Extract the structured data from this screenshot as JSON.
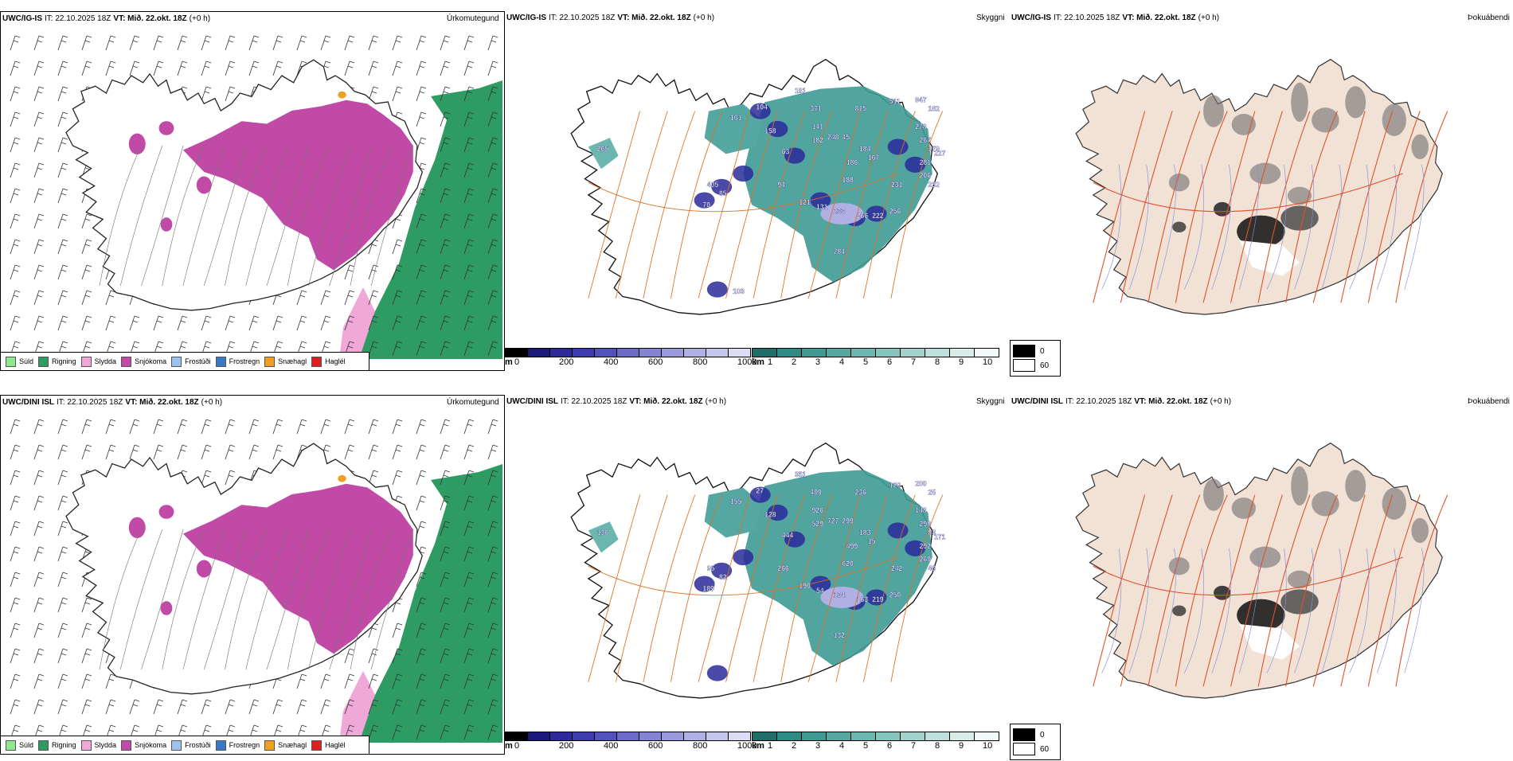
{
  "rows": [
    {
      "model": "UWC/IG-IS",
      "precip": {
        "it_label": "IT: 22.10.2025 18Z",
        "vt_label": "VT: Mið. 22.okt. 18Z",
        "lead": "(+0 h)",
        "right_label": "Úrkomutegund"
      },
      "cloud": {
        "it_label": "IT: 22.10.2025 18Z",
        "vt_label": "VT: Mið. 22.okt. 18Z",
        "lead": "(+0 h)",
        "right_label": "Skyggni",
        "height_labels": [
          "265",
          "161",
          "104",
          "181",
          "158",
          "63",
          "371",
          "141",
          "182",
          "248",
          "45",
          "815",
          "511",
          "947",
          "182",
          "278",
          "184",
          "167",
          "186",
          "267",
          "179",
          "227",
          "281",
          "206",
          "232",
          "405",
          "85",
          "70",
          "94",
          "188",
          "121",
          "131",
          "233",
          "266",
          "222",
          "256",
          "231",
          "784",
          "103"
        ]
      },
      "fog": {
        "it_label": "IT: 22.10.2025 18Z",
        "vt_label": "VT: Mið. 22.okt. 18Z",
        "lead": "(+0 h)",
        "right_label": "Þokuábendi"
      }
    },
    {
      "model": "UWC/DINI ISL",
      "precip": {
        "it_label": "IT: 22.10.2025 18Z",
        "vt_label": "VT: Mið. 22.okt. 18Z",
        "lead": "(+0 h)",
        "right_label": "Úrkomutegund"
      },
      "cloud": {
        "it_label": "IT: 22.10.2025 18Z",
        "vt_label": "VT: Mið. 22.okt. 18Z",
        "lead": "(+0 h)",
        "right_label": "Skyggni",
        "height_labels": [
          "136",
          "155",
          "27",
          "351",
          "128",
          "444",
          "409",
          "926",
          "529",
          "727",
          "299",
          "236",
          "120",
          "200",
          "25",
          "148",
          "183",
          "15",
          "499",
          "290",
          "83",
          "171",
          "292",
          "269",
          "46",
          "95",
          "82",
          "189",
          "266",
          "620",
          "190",
          "54",
          "134",
          "163",
          "219",
          "250",
          "242",
          "132"
        ]
      },
      "fog": {
        "it_label": "IT: 22.10.2025 18Z",
        "vt_label": "VT: Mið. 22.okt. 18Z",
        "lead": "(+0 h)",
        "right_label": "Þokuábendi"
      }
    }
  ],
  "precip_legend": [
    {
      "label": "Súld",
      "color": "#8ee88e"
    },
    {
      "label": "Rigning",
      "color": "#2e9b62"
    },
    {
      "label": "Slydda",
      "color": "#f0a8d8"
    },
    {
      "label": "Snjókoma",
      "color": "#c04aa6"
    },
    {
      "label": "Frostúði",
      "color": "#9ec2ee"
    },
    {
      "label": "Frostregn",
      "color": "#3a78c6"
    },
    {
      "label": "Snæhagl",
      "color": "#f0a020"
    },
    {
      "label": "Haglél",
      "color": "#e02020"
    }
  ],
  "cloudbase_bar": {
    "unit": "m",
    "ticks": [
      "0",
      "200",
      "400",
      "600",
      "800",
      "1000"
    ],
    "colors": [
      "#000000",
      "#1a1a7a",
      "#2a2a9a",
      "#3c3cb0",
      "#5252bc",
      "#6a6ac8",
      "#8484d4",
      "#9a9adc",
      "#b0b0e4",
      "#c6c6ec",
      "#dcdcf4"
    ]
  },
  "visibility_bar": {
    "unit": "km",
    "ticks": [
      "1",
      "2",
      "3",
      "4",
      "5",
      "6",
      "7",
      "8",
      "9",
      "10"
    ],
    "colors": [
      "#1f6e6a",
      "#2e8a84",
      "#3f9a94",
      "#55a8a2",
      "#6cb6b0",
      "#86c4be",
      "#a2d2cc",
      "#bedfdb",
      "#d8ece9",
      "#f2f8f7"
    ]
  },
  "cloud_legend": [
    {
      "label": "0",
      "color": "#000000"
    },
    {
      "label": "60",
      "color": "#ffffff"
    }
  ]
}
